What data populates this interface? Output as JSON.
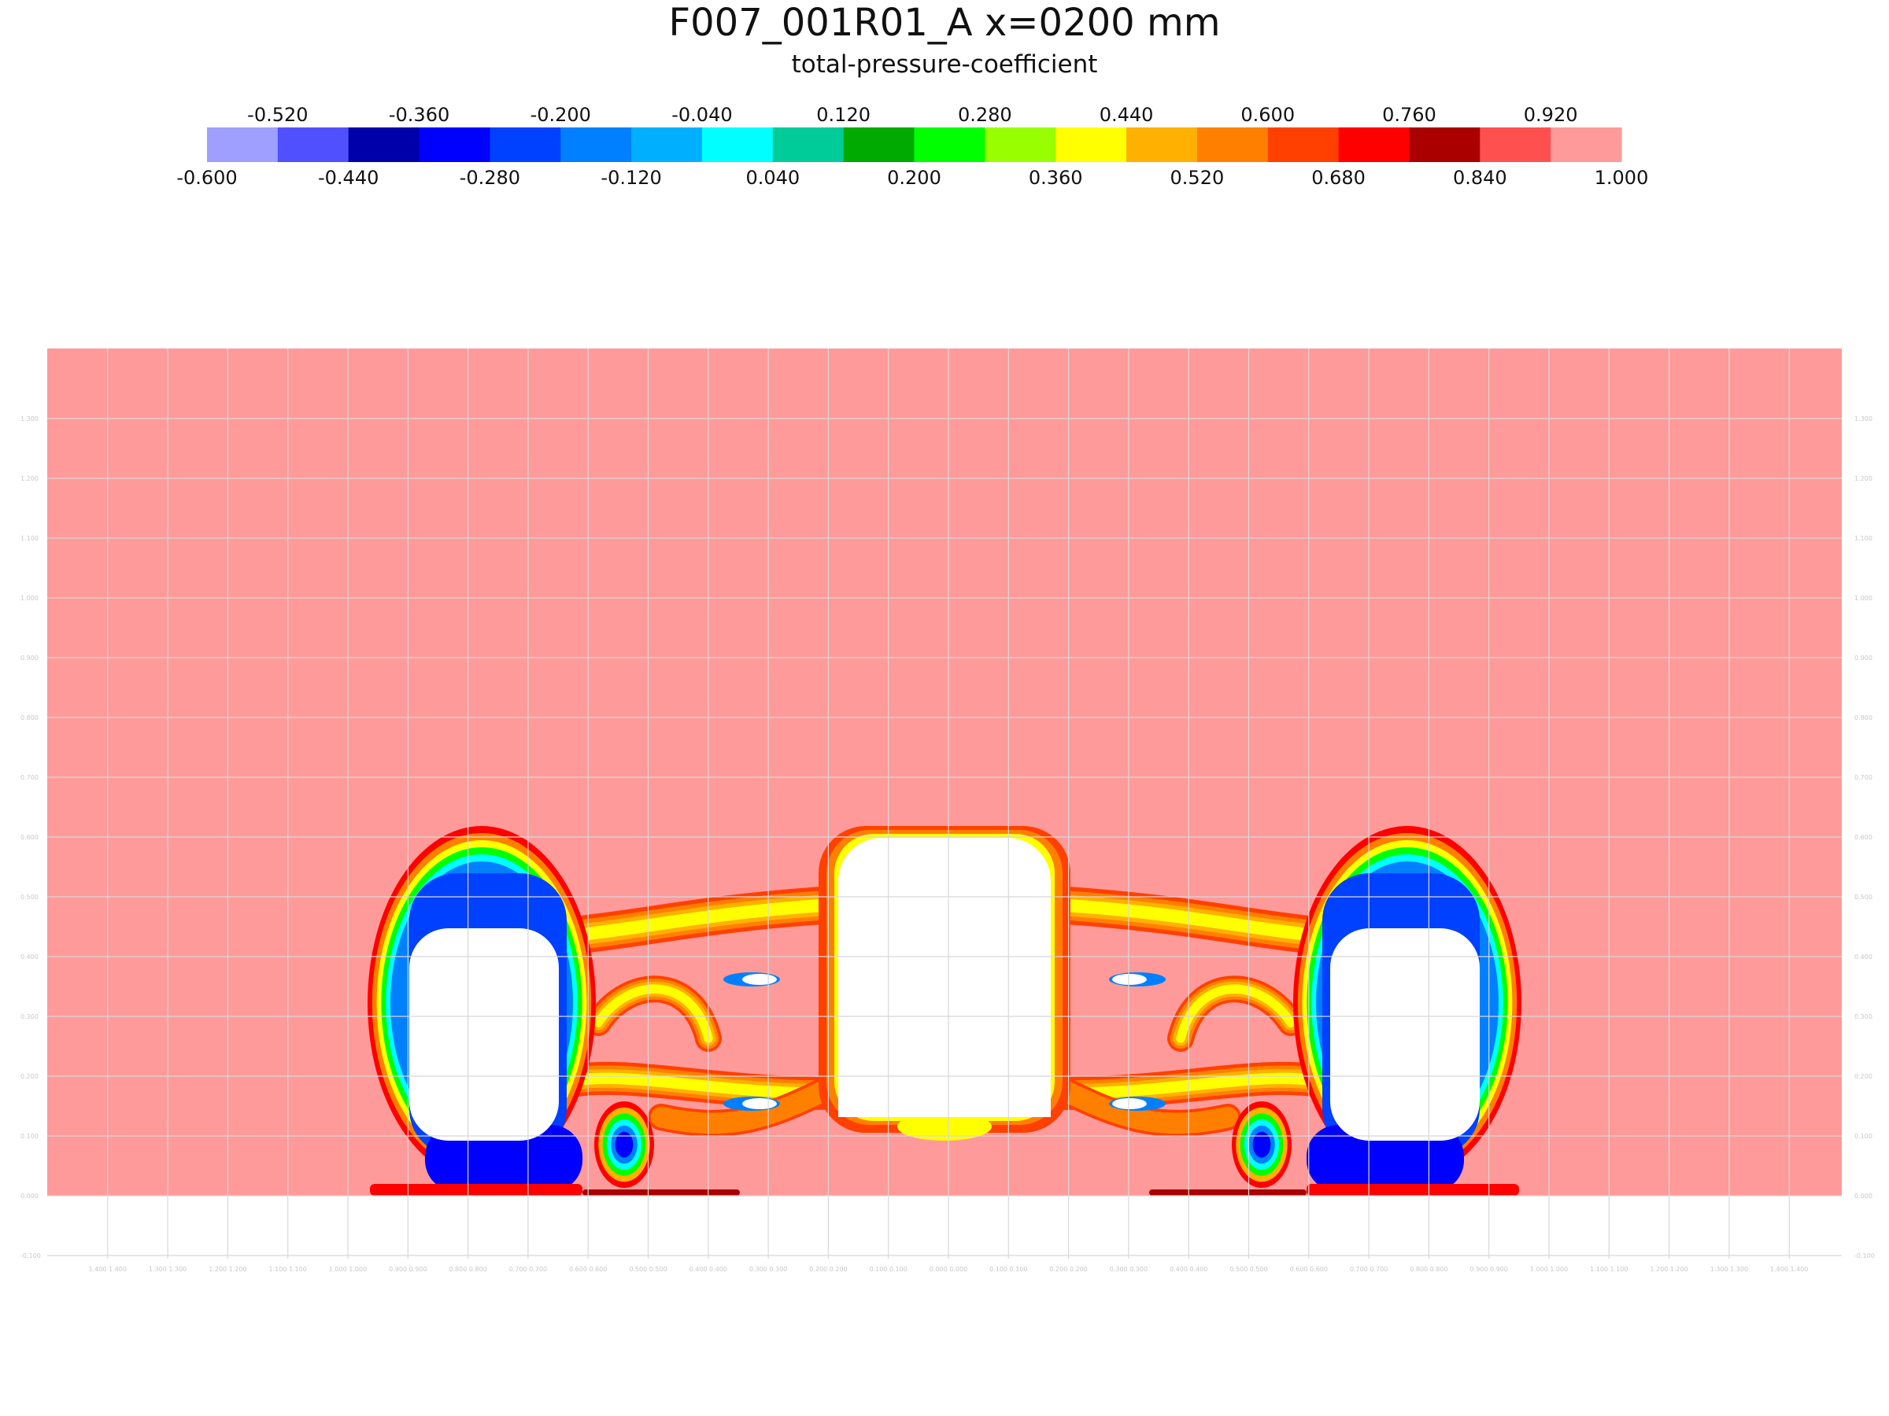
{
  "chart_data": {
    "type": "heatmap",
    "title": "F007_001R01_A x=0200 mm",
    "subtitle": "total-pressure-coefficient",
    "colorbar": {
      "min": -0.6,
      "max": 1.0,
      "labels_bottom": [
        "-0.600",
        "-0.440",
        "-0.280",
        "-0.120",
        "0.040",
        "0.200",
        "0.360",
        "0.520",
        "0.680",
        "0.840",
        "1.000"
      ],
      "labels_top": [
        "-0.520",
        "-0.360",
        "-0.200",
        "-0.040",
        "0.120",
        "0.280",
        "0.440",
        "0.600",
        "0.760",
        "0.920"
      ],
      "colors": [
        "#9f9fff",
        "#5050ff",
        "#0000aa",
        "#0000ff",
        "#0040ff",
        "#0080ff",
        "#00b0ff",
        "#00ffff",
        "#00cc99",
        "#00aa00",
        "#00ff00",
        "#99ff00",
        "#ffff00",
        "#ffb000",
        "#ff8000",
        "#ff4000",
        "#ff0000",
        "#aa0000",
        "#ff5050",
        "#ff9a9a"
      ]
    },
    "background_value_color": "#ff9a9a",
    "y_axis": {
      "ticks": [
        "-0.100",
        "0.000",
        "0.100",
        "0.200",
        "0.300",
        "0.400",
        "0.500",
        "0.600",
        "0.700",
        "0.800",
        "0.900",
        "1.000",
        "1.100",
        "1.200",
        "1.300"
      ]
    },
    "x_axis": {
      "ticks": [
        "1.400",
        "1.300",
        "1.200",
        "1.100",
        "1.000",
        "0.900",
        "0.800",
        "0.700",
        "0.600",
        "0.500",
        "0.400",
        "0.300",
        "0.200",
        "0.100",
        "0.000",
        "0.100",
        "0.200",
        "0.300",
        "0.400",
        "0.500",
        "0.600",
        "0.700",
        "0.800",
        "0.900",
        "1.000",
        "1.100",
        "1.200",
        "1.300",
        "1.400"
      ],
      "range": [
        -1.5,
        1.5
      ]
    },
    "grid": true
  }
}
